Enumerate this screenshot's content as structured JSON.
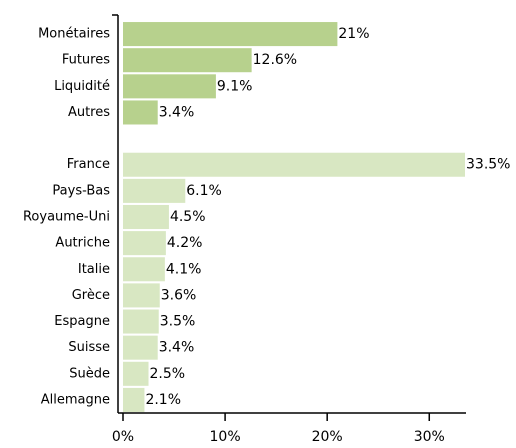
{
  "chart_data": {
    "type": "hbar",
    "categories": [
      "Monétaires",
      "Futures",
      "Liquidité",
      "Autres",
      null,
      "France",
      "Pays-Bas",
      "Royaume-Uni",
      "Autriche",
      "Italie",
      "Grèce",
      "Espagne",
      "Suisse",
      "Suède",
      "Allemagne"
    ],
    "values": [
      21,
      12.6,
      9.1,
      3.4,
      null,
      33.5,
      6.1,
      4.5,
      4.2,
      4.1,
      3.6,
      3.5,
      3.4,
      2.5,
      2.1
    ],
    "value_labels": [
      "21%",
      "12.6%",
      "9.1%",
      "3.4%",
      null,
      "33.5%",
      "6.1%",
      "4.5%",
      "4.2%",
      "4.1%",
      "3.6%",
      "3.5%",
      "3.4%",
      "2.5%",
      "2.1%"
    ],
    "colors": [
      "#b7d18d",
      "#b7d18d",
      "#b7d18d",
      "#b7d18d",
      null,
      "#d8e7c2",
      "#d8e7c2",
      "#d8e7c2",
      "#d8e7c2",
      "#d8e7c2",
      "#d8e7c2",
      "#d8e7c2",
      "#d8e7c2",
      "#d8e7c2",
      "#d8e7c2"
    ],
    "xlim": [
      0,
      33.5
    ],
    "xticks": [
      {
        "value": 0,
        "label": "0%"
      },
      {
        "value": 10,
        "label": "10%"
      },
      {
        "value": 20,
        "label": "20%"
      },
      {
        "value": 30,
        "label": "30%"
      }
    ]
  }
}
